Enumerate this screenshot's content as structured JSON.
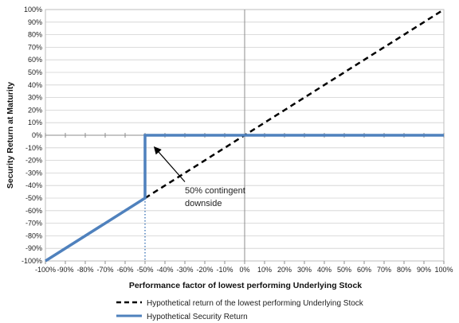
{
  "chart_data": {
    "type": "line",
    "xlabel": "Performance factor of lowest performing Underlying Stock",
    "ylabel": "Security Return at Maturity",
    "xlim": [
      -100,
      100
    ],
    "ylim": [
      -100,
      100
    ],
    "x_ticks": [
      "-100%",
      "-90%",
      "-80%",
      "-70%",
      "-60%",
      "-50%",
      "-40%",
      "-30%",
      "-20%",
      "-10%",
      "0%",
      "10%",
      "20%",
      "30%",
      "40%",
      "50%",
      "60%",
      "70%",
      "80%",
      "90%",
      "100%"
    ],
    "y_ticks": [
      "100%",
      "90%",
      "80%",
      "70%",
      "60%",
      "50%",
      "40%",
      "30%",
      "20%",
      "10%",
      "0%",
      "-10%",
      "-20%",
      "-30%",
      "-40%",
      "-50%",
      "-60%",
      "-70%",
      "-80%",
      "-90%",
      "-100%"
    ],
    "grid": "horizontal",
    "legend_placement": "bottom",
    "series": [
      {
        "name": "Hypothetical return of the lowest performing Underlying Stock",
        "style": "dashed",
        "color": "#000000",
        "points": [
          [
            -50,
            -50
          ],
          [
            100,
            100
          ]
        ]
      },
      {
        "name": "Hypothetical Security Return",
        "style": "solid",
        "color": "#4f81bd",
        "points": [
          [
            -100,
            -100
          ],
          [
            -50,
            -50
          ],
          [
            -50,
            0
          ],
          [
            0,
            0
          ],
          [
            100,
            0
          ]
        ]
      }
    ],
    "reference_line": {
      "x": -50,
      "from": -100,
      "to": -50,
      "style": "dotted",
      "color": "#4f81bd"
    },
    "annotation": {
      "lines": [
        "50% contingent",
        "downside"
      ],
      "arrow_to": [
        -45,
        -10
      ],
      "anchor": [
        -30,
        -37
      ]
    }
  }
}
